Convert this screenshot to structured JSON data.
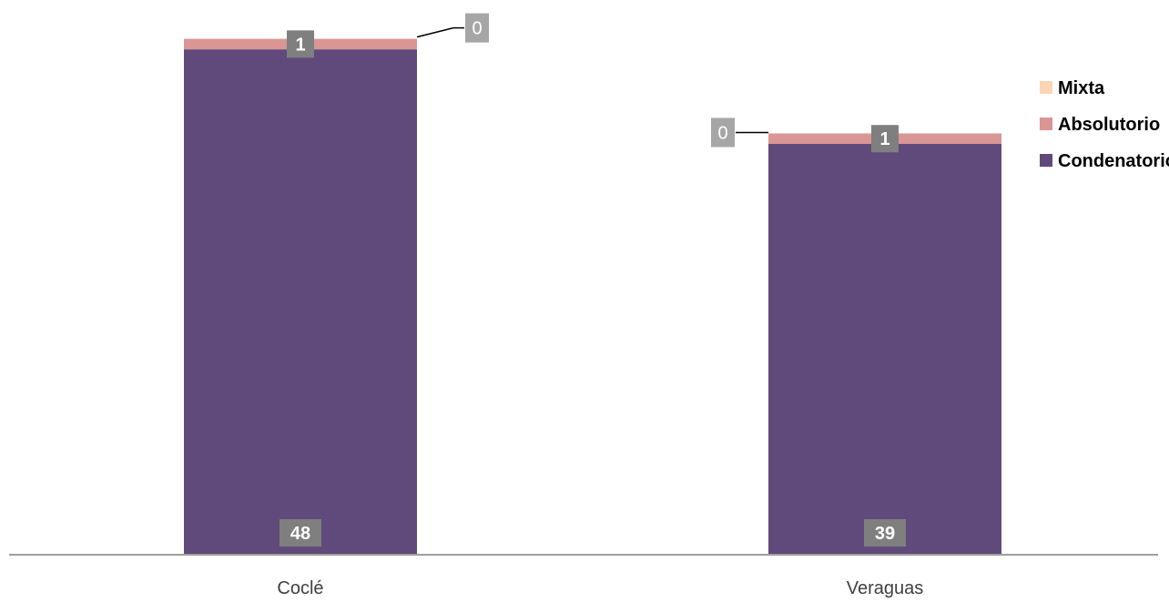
{
  "chart_data": {
    "type": "bar",
    "stacked": true,
    "categories": [
      "Coclé",
      "Veraguas"
    ],
    "series": [
      {
        "name": "Condenatorio",
        "values": [
          48,
          39
        ],
        "color": "#604a7b"
      },
      {
        "name": "Absolutorio",
        "values": [
          1,
          1
        ],
        "color": "#d99694"
      },
      {
        "name": "Mixta",
        "values": [
          0,
          0
        ],
        "color": "#fcd5b5"
      }
    ],
    "legend_order": [
      "Mixta",
      "Absolutorio",
      "Condenatorio"
    ],
    "legend_position": "right",
    "ylim": [
      0,
      52
    ],
    "grid": false,
    "y_axis_visible": false,
    "data_label_colors": {
      "dark": "#7f7f7f",
      "light": "#a6a6a6"
    },
    "axis_color": "#7f7f7f"
  }
}
